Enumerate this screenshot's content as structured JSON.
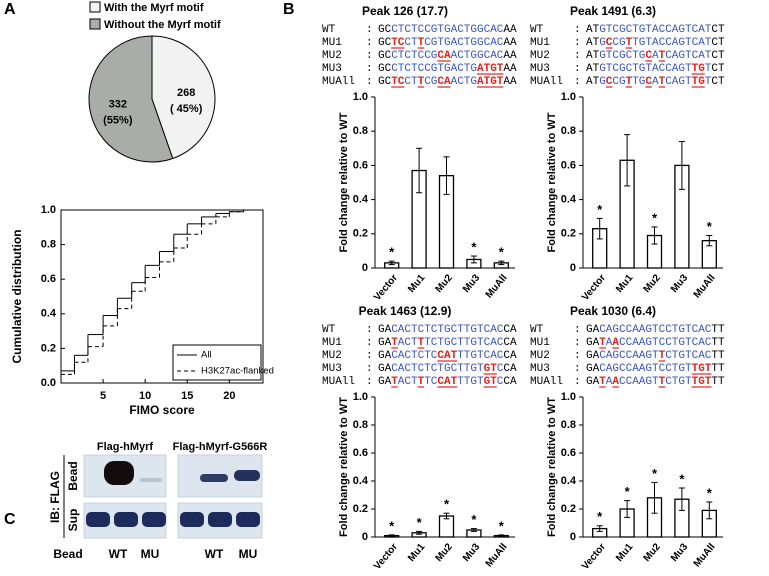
{
  "chart_data": [
    {
      "type": "pie",
      "panel": "A",
      "categories": [
        "With the Myrf motif",
        "Without the Myrf motif"
      ],
      "values": [
        268,
        332
      ],
      "percent_labels": [
        "( 45%)",
        "(55%)"
      ],
      "colors": [
        "#f2f2f2",
        "#a9ada9"
      ]
    },
    {
      "type": "step",
      "xlabel": "FIMO score",
      "ylabel": "Cumulative distribution",
      "x": [
        0,
        1.6,
        3.2,
        5,
        6.7,
        8.4,
        10,
        11.7,
        13.4,
        15,
        16.7,
        18.4,
        20,
        21.7
      ],
      "series": [
        {
          "name": "All",
          "color": "#000000",
          "dash": "solid",
          "values": [
            0.07,
            0.16,
            0.28,
            0.39,
            0.49,
            0.58,
            0.68,
            0.76,
            0.86,
            0.92,
            0.96,
            0.98,
            0.99,
            1.0
          ]
        },
        {
          "name": "H3K27ac-flanked",
          "color": "#000000",
          "dash": "dashed",
          "values": [
            0.05,
            0.12,
            0.21,
            0.33,
            0.43,
            0.53,
            0.61,
            0.7,
            0.78,
            0.86,
            0.92,
            0.96,
            0.99,
            1.0
          ]
        }
      ],
      "xlim": [
        0,
        24
      ],
      "xticks": [
        5,
        10,
        15,
        20
      ],
      "ylim": [
        0,
        1
      ],
      "yticks": [
        {
          "value": 0,
          "label": "0.0"
        },
        0.2,
        0.4,
        0.6,
        0.8,
        {
          "value": 1,
          "label": "1.0"
        }
      ],
      "legend": "lower right",
      "grid": false
    },
    {
      "type": "bar",
      "panel": "B",
      "title": "Peak 126 (17.7)",
      "sequences": [
        {
          "name": "WT",
          "sequence": "GCCTCTCCGTGACTGGCACAA"
        },
        {
          "name": "MU1",
          "sequence": "GCTCCTTCGTGACTGGCACAA"
        },
        {
          "name": "MU2",
          "sequence": "GCCTCTCCGCAACTGGCACAA"
        },
        {
          "name": "MU3",
          "sequence": "GCCTCTCCGTGACTGATGTAA"
        },
        {
          "name": "MUAll",
          "sequence": "GCTCCTTCGCAACTGATGTAA"
        }
      ],
      "ylabel": "Fold change relative to WT",
      "categories": [
        "Vector",
        "Mu1",
        "Mu2",
        "Mu3",
        "MuAll"
      ],
      "values": [
        0.03,
        0.57,
        0.54,
        0.05,
        0.03
      ],
      "errors": [
        0.01,
        0.13,
        0.11,
        0.02,
        0.01
      ],
      "significance": [
        "*",
        null,
        null,
        "*",
        "*"
      ],
      "color": "#ffffff",
      "ylim": [
        0,
        1
      ],
      "yticks": [
        0,
        0.2,
        0.4,
        0.6,
        0.8,
        {
          "value": 1,
          "label": "1.0"
        }
      ]
    },
    {
      "type": "bar",
      "title": "Peak 1491 (6.3)",
      "sequences": [
        {
          "name": "WT",
          "sequence": "ATGTCGCTGTACCAGTCATCT"
        },
        {
          "name": "MU1",
          "sequence": "ATGCCGTTGTACCAGTCATCT"
        },
        {
          "name": "MU2",
          "sequence": "ATGTCGCTGCATCAGTCATCT"
        },
        {
          "name": "MU3",
          "sequence": "ATGTCGCTGTACCAGTTGTCT"
        },
        {
          "name": "MUAll",
          "sequence": "ATGCCGTTGCATCAGTTGTCT"
        }
      ],
      "ylabel": "Fold change relative to WT",
      "categories": [
        "Vector",
        "Mu1",
        "Mu2",
        "Mu3",
        "MuAll"
      ],
      "values": [
        0.23,
        0.63,
        0.19,
        0.6,
        0.16
      ],
      "errors": [
        0.06,
        0.15,
        0.05,
        0.14,
        0.03
      ],
      "significance": [
        "*",
        null,
        "*",
        null,
        "*"
      ],
      "color": "#ffffff",
      "ylim": [
        0,
        1
      ],
      "yticks": [
        0,
        0.2,
        0.4,
        0.6,
        0.8,
        {
          "value": 1,
          "label": "1.0"
        }
      ]
    },
    {
      "type": "bar",
      "title": "Peak 1463 (12.9)",
      "sequences": [
        {
          "name": "WT",
          "sequence": "GACACTCTCTGCTTGTCACCA"
        },
        {
          "name": "MU1",
          "sequence": "GATACTTTCTGCTTGTCACCA"
        },
        {
          "name": "MU2",
          "sequence": "GACACTCTCCATTTGTCACCA"
        },
        {
          "name": "MU3",
          "sequence": "GACACTCTCTGCTTGTGTCCA"
        },
        {
          "name": "MUAll",
          "sequence": "GATACTTTCCATTTGTGTCCA"
        }
      ],
      "ylabel": "Fold change relative to WT",
      "categories": [
        "Vector",
        "Mu1",
        "Mu2",
        "Mu3",
        "MuAll"
      ],
      "values": [
        0.01,
        0.03,
        0.15,
        0.05,
        0.01
      ],
      "errors": [
        0.005,
        0.01,
        0.02,
        0.01,
        0.005
      ],
      "significance": [
        "*",
        "*",
        "*",
        "*",
        "*"
      ],
      "color": "#ffffff",
      "ylim": [
        0,
        1
      ],
      "yticks": [
        0,
        0.2,
        0.4,
        0.6,
        0.8,
        {
          "value": 1,
          "label": "1.0"
        }
      ]
    },
    {
      "type": "bar",
      "title": "Peak 1030 (6.4)",
      "sequences": [
        {
          "name": "WT",
          "sequence": "GACAGCCAAGTCCTGTCACTT"
        },
        {
          "name": "MU1",
          "sequence": "GATAACCAAGTCCTGTCACTT"
        },
        {
          "name": "MU2",
          "sequence": "GACAGCCAAGTTCTGTCACTT"
        },
        {
          "name": "MU3",
          "sequence": "GACAGCCAAGTCCTGTTGTTT"
        },
        {
          "name": "MUAll",
          "sequence": "GATAACCAAGTTCTGTTGTTT"
        }
      ],
      "ylabel": "Fold change relative to WT",
      "categories": [
        "Vector",
        "Mu1",
        "Mu2",
        "Mu3",
        "MuAll"
      ],
      "values": [
        0.06,
        0.2,
        0.28,
        0.27,
        0.19
      ],
      "errors": [
        0.02,
        0.06,
        0.11,
        0.08,
        0.06
      ],
      "significance": [
        "*",
        "*",
        "*",
        "*",
        "*"
      ],
      "color": "#ffffff",
      "ylim": [
        0,
        1
      ],
      "yticks": [
        0,
        0.2,
        0.4,
        0.6,
        0.8,
        {
          "value": 1,
          "label": "1.0"
        }
      ]
    }
  ],
  "blot": {
    "panel": "C",
    "side_label": "IB: FLAG",
    "row_labels": [
      "Bead",
      "Sup"
    ],
    "groups": [
      "Flag-hMyrf",
      "Flag-hMyrf-G566R"
    ],
    "lane_labels": [
      "Bead",
      "WT",
      "MU",
      "WT",
      "MU"
    ]
  }
}
